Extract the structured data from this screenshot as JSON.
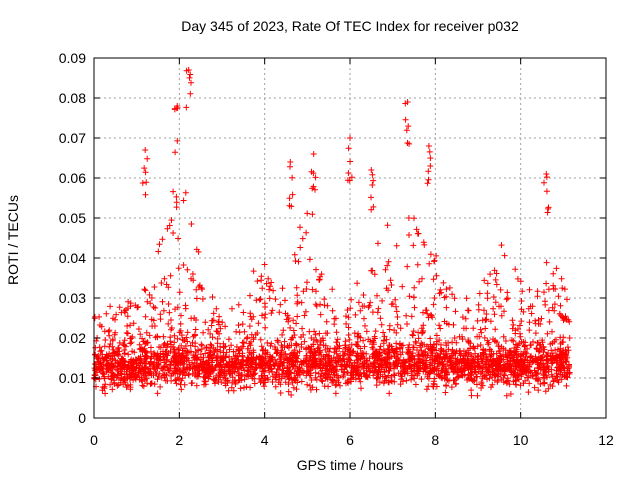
{
  "chart_data": {
    "type": "scatter",
    "title": "Day 345 of 2023, Rate Of TEC Index for receiver p032",
    "xlabel": "GPS time / hours",
    "ylabel": "ROTI / TECUs",
    "xlim": [
      0,
      12
    ],
    "ylim": [
      0,
      0.09
    ],
    "xticks": [
      "0",
      "2",
      "4",
      "6",
      "8",
      "10",
      "12"
    ],
    "yticks": [
      "0",
      "0.01",
      "0.02",
      "0.03",
      "0.04",
      "0.05",
      "0.06",
      "0.07",
      "0.08",
      "0.09"
    ],
    "grid": true,
    "marker": "+",
    "marker_color": "#ff0000",
    "data_range_hours": [
      0,
      11.15
    ],
    "peaks": [
      {
        "x": 2.22,
        "y": 0.087
      },
      {
        "x": 1.95,
        "y": 0.078
      },
      {
        "x": 7.35,
        "y": 0.079
      },
      {
        "x": 6.0,
        "y": 0.07
      },
      {
        "x": 7.85,
        "y": 0.068
      },
      {
        "x": 1.2,
        "y": 0.067
      },
      {
        "x": 5.15,
        "y": 0.066
      },
      {
        "x": 4.6,
        "y": 0.064
      },
      {
        "x": 6.5,
        "y": 0.062
      },
      {
        "x": 10.6,
        "y": 0.061
      }
    ]
  }
}
